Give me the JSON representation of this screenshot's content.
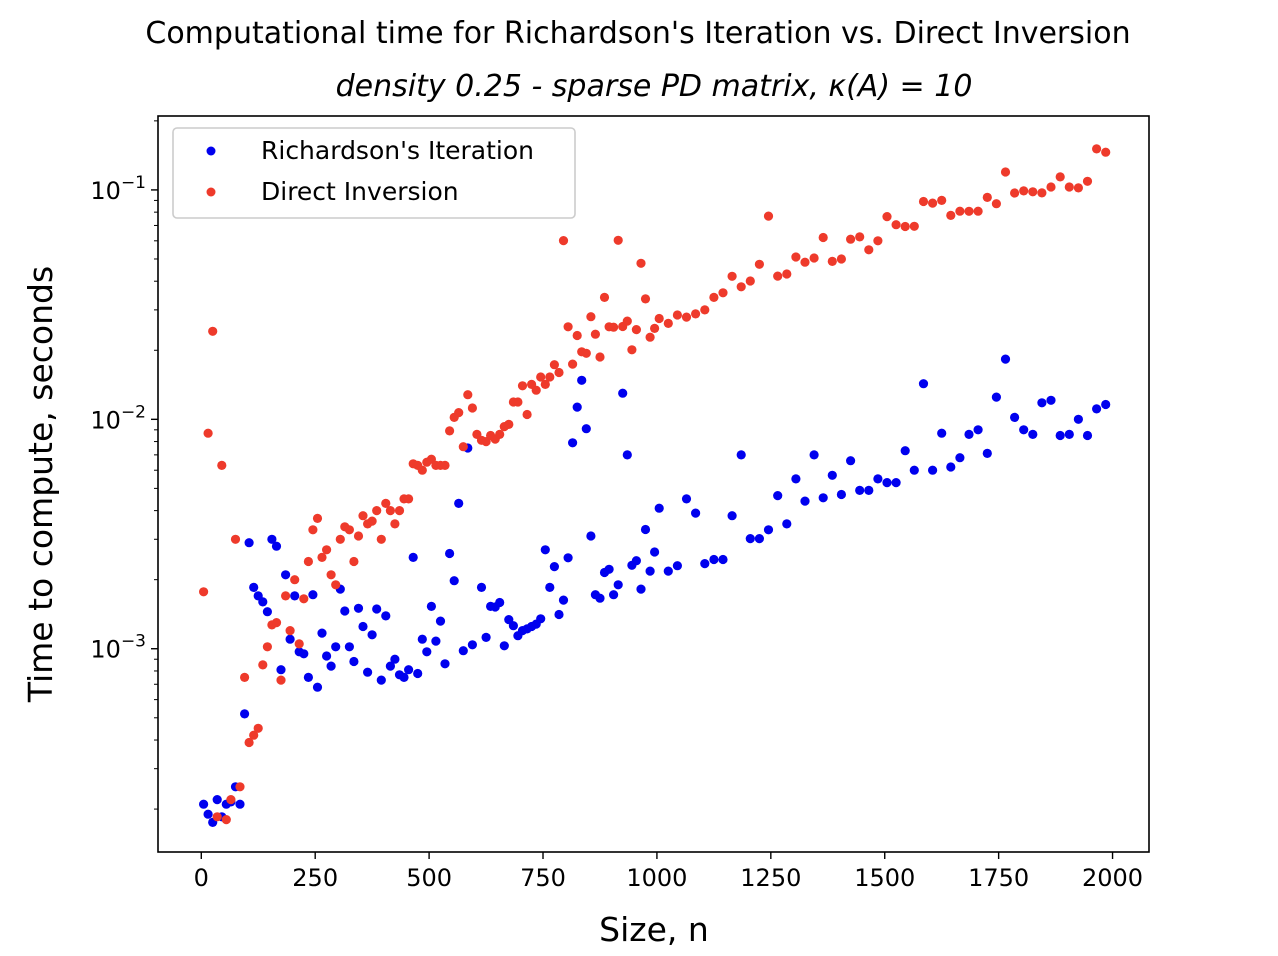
{
  "chart_data": {
    "type": "scatter",
    "title": "Computational time for Richardson's Iteration vs. Direct Inversion",
    "subtitle": "density 0.25 - sparse PD matrix, κ(A) = 10",
    "xlabel": "Size, n",
    "ylabel": "Time to compute, seconds",
    "xlim": [
      -95,
      2080
    ],
    "ylim": [
      0.00013,
      0.21
    ],
    "yscale": "log",
    "xticks": [
      0,
      250,
      500,
      750,
      1000,
      1250,
      1500,
      1750,
      2000
    ],
    "xtick_labels": [
      "0",
      "250",
      "500",
      "750",
      "1000",
      "1250",
      "1500",
      "1750",
      "2000"
    ],
    "yticks": [
      0.001,
      0.01,
      0.1
    ],
    "ytick_labels": [
      "10",
      "10",
      "10"
    ],
    "ytick_exponents": [
      "−3",
      "−2",
      "−1"
    ],
    "grid": false,
    "legend_position": "top-left",
    "series": [
      {
        "name": "Richardson's Iteration",
        "color": "#0000ee",
        "x": [
          5,
          15,
          25,
          35,
          45,
          55,
          65,
          75,
          85,
          95,
          105,
          115,
          125,
          135,
          145,
          155,
          165,
          175,
          185,
          195,
          205,
          215,
          225,
          235,
          245,
          255,
          265,
          275,
          285,
          295,
          305,
          315,
          325,
          335,
          345,
          355,
          365,
          375,
          385,
          395,
          405,
          415,
          425,
          435,
          445,
          455,
          465,
          475,
          485,
          495,
          505,
          515,
          525,
          535,
          545,
          555,
          565,
          575,
          585,
          595,
          615,
          625,
          635,
          645,
          655,
          665,
          675,
          685,
          695,
          705,
          715,
          725,
          735,
          745,
          755,
          765,
          775,
          785,
          795,
          805,
          815,
          825,
          835,
          845,
          855,
          865,
          875,
          885,
          895,
          905,
          915,
          925,
          935,
          945,
          955,
          965,
          975,
          985,
          995,
          1005,
          1025,
          1045,
          1065,
          1085,
          1105,
          1125,
          1145,
          1165,
          1185,
          1205,
          1225,
          1245,
          1265,
          1285,
          1305,
          1325,
          1345,
          1365,
          1385,
          1405,
          1425,
          1445,
          1465,
          1485,
          1505,
          1525,
          1545,
          1565,
          1585,
          1605,
          1625,
          1645,
          1665,
          1685,
          1705,
          1725,
          1745,
          1765,
          1785,
          1805,
          1825,
          1845,
          1865,
          1885,
          1905,
          1925,
          1945,
          1965,
          1985
        ],
        "y": [
          0.00021,
          0.00019,
          0.000175,
          0.00022,
          0.000185,
          0.00021,
          0.000215,
          0.00025,
          0.00021,
          0.00052,
          0.0029,
          0.00185,
          0.0017,
          0.0016,
          0.00145,
          0.003,
          0.0028,
          0.00081,
          0.0021,
          0.0011,
          0.0017,
          0.00097,
          0.00095,
          0.00075,
          0.00172,
          0.00068,
          0.00117,
          0.00093,
          0.00084,
          0.00102,
          0.00182,
          0.00146,
          0.00102,
          0.00088,
          0.0015,
          0.00125,
          0.00079,
          0.00115,
          0.00149,
          0.00073,
          0.00139,
          0.00084,
          0.0009,
          0.00077,
          0.00075,
          0.00081,
          0.0025,
          0.00078,
          0.0011,
          0.00097,
          0.00153,
          0.00108,
          0.00132,
          0.00086,
          0.0026,
          0.00198,
          0.0043,
          0.00098,
          0.0075,
          0.00104,
          0.00185,
          0.00112,
          0.00153,
          0.00152,
          0.00159,
          0.00103,
          0.00134,
          0.00126,
          0.00114,
          0.0012,
          0.00122,
          0.00125,
          0.00128,
          0.00135,
          0.0027,
          0.00185,
          0.00228,
          0.00141,
          0.00163,
          0.00249,
          0.0079,
          0.0113,
          0.0148,
          0.0091,
          0.0031,
          0.00172,
          0.00166,
          0.00215,
          0.00222,
          0.00172,
          0.0019,
          0.013,
          0.007,
          0.00231,
          0.00242,
          0.00182,
          0.00331,
          0.00218,
          0.00264,
          0.0041,
          0.00218,
          0.0023,
          0.0045,
          0.0039,
          0.00235,
          0.00245,
          0.00245,
          0.0038,
          0.007,
          0.00302,
          0.00302,
          0.0033,
          0.00465,
          0.0035,
          0.0055,
          0.0044,
          0.007,
          0.00455,
          0.0057,
          0.0047,
          0.0066,
          0.0049,
          0.0049,
          0.0055,
          0.0053,
          0.0053,
          0.0073,
          0.006,
          0.0143,
          0.006,
          0.0087,
          0.0062,
          0.0068,
          0.0086,
          0.009,
          0.0071,
          0.0125,
          0.0183,
          0.0102,
          0.009,
          0.0086,
          0.0118,
          0.0121,
          0.0085,
          0.0086,
          0.01,
          0.0085,
          0.0111,
          0.0116
        ]
      },
      {
        "name": "Direct Inversion",
        "color": "#ee3a2b",
        "x": [
          5,
          15,
          25,
          35,
          45,
          55,
          65,
          75,
          85,
          95,
          105,
          115,
          125,
          135,
          145,
          155,
          165,
          175,
          185,
          195,
          205,
          215,
          225,
          235,
          245,
          255,
          265,
          275,
          285,
          295,
          305,
          315,
          325,
          335,
          345,
          355,
          365,
          375,
          385,
          395,
          405,
          415,
          425,
          435,
          445,
          455,
          465,
          475,
          485,
          495,
          505,
          515,
          525,
          535,
          545,
          555,
          565,
          575,
          585,
          595,
          605,
          615,
          625,
          635,
          645,
          655,
          665,
          675,
          685,
          695,
          705,
          715,
          725,
          735,
          745,
          755,
          765,
          775,
          785,
          795,
          805,
          815,
          825,
          835,
          845,
          855,
          865,
          875,
          885,
          895,
          905,
          915,
          925,
          935,
          945,
          955,
          965,
          975,
          985,
          995,
          1005,
          1025,
          1045,
          1065,
          1085,
          1105,
          1125,
          1145,
          1165,
          1185,
          1205,
          1225,
          1245,
          1265,
          1285,
          1305,
          1325,
          1345,
          1365,
          1385,
          1405,
          1425,
          1445,
          1465,
          1485,
          1505,
          1525,
          1545,
          1565,
          1585,
          1605,
          1625,
          1645,
          1665,
          1685,
          1705,
          1725,
          1745,
          1765,
          1785,
          1805,
          1825,
          1845,
          1865,
          1885,
          1905,
          1925,
          1945,
          1965,
          1985
        ],
        "y": [
          0.00177,
          0.0087,
          0.0242,
          0.000185,
          0.0063,
          0.00018,
          0.00022,
          0.003,
          0.00025,
          0.00075,
          0.00039,
          0.00042,
          0.00045,
          0.00085,
          0.00102,
          0.00127,
          0.0013,
          0.00073,
          0.0017,
          0.0012,
          0.002,
          0.00105,
          0.00165,
          0.0024,
          0.0033,
          0.0037,
          0.0025,
          0.0027,
          0.0021,
          0.0019,
          0.003,
          0.0034,
          0.0033,
          0.0024,
          0.0031,
          0.0038,
          0.0035,
          0.0036,
          0.004,
          0.003,
          0.0043,
          0.004,
          0.0035,
          0.004,
          0.0045,
          0.0045,
          0.0064,
          0.0063,
          0.006,
          0.0065,
          0.0067,
          0.0063,
          0.0063,
          0.0063,
          0.0089,
          0.0102,
          0.0107,
          0.0076,
          0.0128,
          0.0112,
          0.0086,
          0.0081,
          0.008,
          0.0085,
          0.0082,
          0.0086,
          0.0093,
          0.0095,
          0.0119,
          0.0119,
          0.014,
          0.0105,
          0.0142,
          0.0134,
          0.0153,
          0.0142,
          0.0153,
          0.0173,
          0.016,
          0.0601,
          0.0253,
          0.0174,
          0.0232,
          0.0197,
          0.0194,
          0.028,
          0.0235,
          0.0187,
          0.034,
          0.0253,
          0.0252,
          0.0603,
          0.0254,
          0.0268,
          0.0201,
          0.0246,
          0.0479,
          0.0335,
          0.0228,
          0.0249,
          0.0275,
          0.0262,
          0.0285,
          0.0279,
          0.0288,
          0.03,
          0.034,
          0.0356,
          0.042,
          0.0378,
          0.0401,
          0.0474,
          0.0769,
          0.0421,
          0.043,
          0.051,
          0.0484,
          0.0505,
          0.062,
          0.0488,
          0.05,
          0.061,
          0.0624,
          0.0548,
          0.06,
          0.0765,
          0.0705,
          0.0693,
          0.0694,
          0.089,
          0.0876,
          0.09,
          0.0774,
          0.0808,
          0.0807,
          0.0808,
          0.0928,
          0.0871,
          0.1197,
          0.097,
          0.099,
          0.0981,
          0.0971,
          0.103,
          0.114,
          0.103,
          0.102,
          0.109,
          0.151,
          0.146
        ]
      }
    ]
  }
}
